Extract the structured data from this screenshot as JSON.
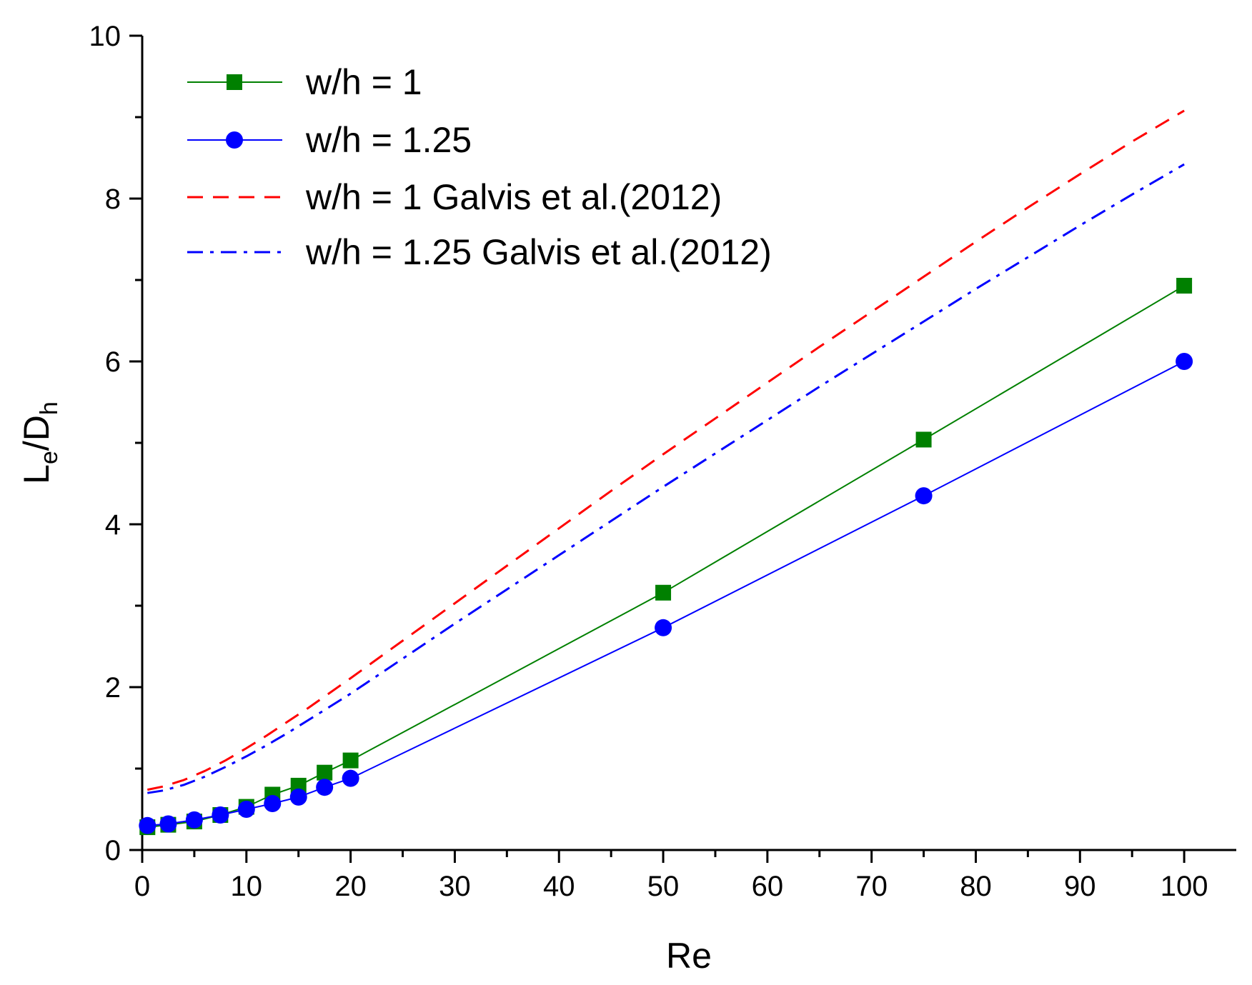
{
  "chart_data": {
    "type": "line",
    "title": "",
    "xlabel": "Re",
    "ylabel": {
      "main": "L",
      "sub1": "e",
      "mid": "/D",
      "sub2": "h"
    },
    "xlim": [
      0,
      105
    ],
    "ylim": [
      0,
      10
    ],
    "x_ticks": [
      0,
      10,
      20,
      30,
      40,
      50,
      60,
      70,
      80,
      90,
      100
    ],
    "x_tick_labels": [
      "0",
      "10",
      "20",
      "30",
      "40",
      "50",
      "60",
      "70",
      "80",
      "90",
      "100"
    ],
    "y_ticks": [
      0,
      2,
      4,
      6,
      8,
      10
    ],
    "y_tick_labels": [
      "0",
      "2",
      "4",
      "6",
      "8",
      "10"
    ],
    "grid": false,
    "legend_position": "top-left",
    "series": [
      {
        "name": "w/h = 1",
        "color": "#008000",
        "marker": "square",
        "line_style": "solid",
        "x": [
          0.5,
          2.5,
          5,
          7.5,
          10,
          12.5,
          15,
          17.5,
          20,
          50,
          75,
          100
        ],
        "values": [
          0.28,
          0.31,
          0.35,
          0.43,
          0.53,
          0.68,
          0.79,
          0.95,
          1.1,
          3.16,
          5.04,
          6.93
        ]
      },
      {
        "name": "w/h = 1.25",
        "color": "#0000ff",
        "marker": "circle",
        "line_style": "solid",
        "x": [
          0.5,
          2.5,
          5,
          7.5,
          10,
          12.5,
          15,
          17.5,
          20,
          50,
          75,
          100
        ],
        "values": [
          0.3,
          0.32,
          0.37,
          0.43,
          0.5,
          0.57,
          0.65,
          0.77,
          0.88,
          2.73,
          4.35,
          6.0
        ]
      },
      {
        "name": "w/h = 1 Galvis et al.(2012)",
        "color": "#ff0000",
        "marker": "none",
        "line_style": "dashed",
        "x": [
          0.5,
          2,
          4,
          6,
          8,
          10,
          12,
          14,
          16,
          18,
          20,
          25,
          30,
          35,
          40,
          45,
          50,
          55,
          60,
          65,
          70,
          75,
          80,
          85,
          90,
          95,
          100
        ],
        "values": [
          0.74,
          0.78,
          0.86,
          0.97,
          1.1,
          1.25,
          1.41,
          1.58,
          1.75,
          1.93,
          2.11,
          2.57,
          3.03,
          3.49,
          3.95,
          4.41,
          4.86,
          5.3,
          5.74,
          6.18,
          6.61,
          7.04,
          7.47,
          7.89,
          8.3,
          8.7,
          9.08
        ]
      },
      {
        "name": "w/h = 1.25 Galvis et al.(2012)",
        "color": "#0000ff",
        "marker": "none",
        "line_style": "dashdot",
        "x": [
          0.5,
          2,
          4,
          6,
          8,
          10,
          12,
          14,
          16,
          18,
          20,
          25,
          30,
          35,
          40,
          45,
          50,
          55,
          60,
          65,
          70,
          75,
          80,
          85,
          90,
          95,
          100
        ],
        "values": [
          0.7,
          0.73,
          0.8,
          0.9,
          1.02,
          1.15,
          1.29,
          1.44,
          1.6,
          1.76,
          1.92,
          2.35,
          2.78,
          3.2,
          3.62,
          4.04,
          4.46,
          4.87,
          5.28,
          5.69,
          6.09,
          6.49,
          6.89,
          7.28,
          7.67,
          8.05,
          8.42
        ]
      }
    ]
  }
}
